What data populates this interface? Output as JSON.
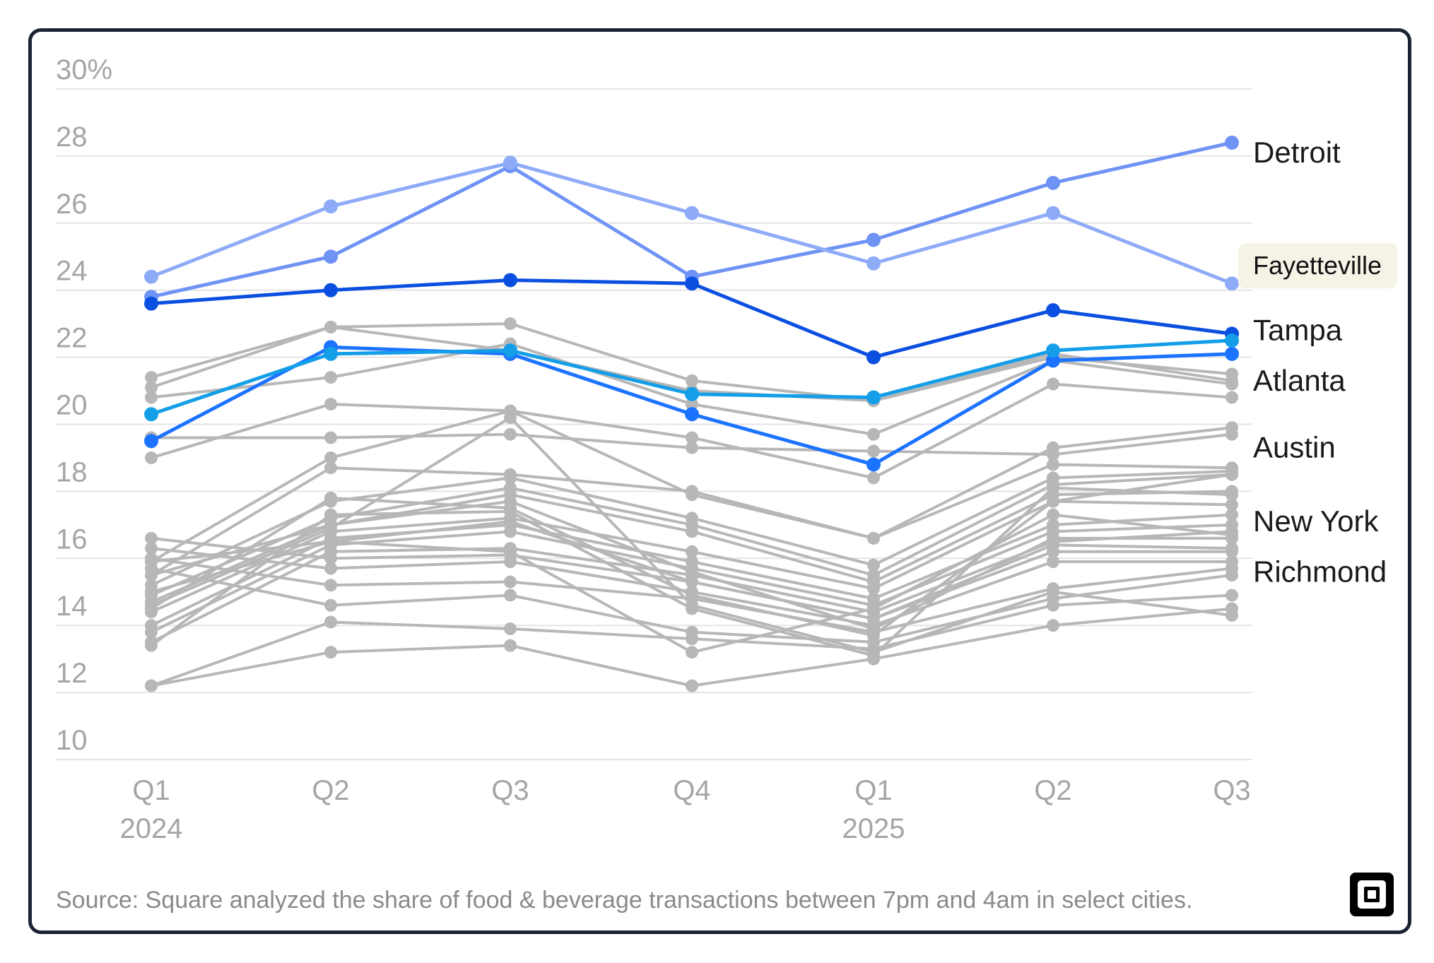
{
  "chart_data": {
    "type": "line",
    "x": [
      "Q1",
      "Q2",
      "Q3",
      "Q4",
      "Q1",
      "Q2",
      "Q3"
    ],
    "x_year_labels": [
      "2024",
      "",
      "",
      "",
      "2025",
      "",
      ""
    ],
    "y_ticks": [
      "30%",
      "28",
      "26",
      "24",
      "22",
      "20",
      "18",
      "16",
      "14",
      "12",
      "10"
    ],
    "ylim": [
      10,
      30
    ],
    "grid": true,
    "colors": {
      "background_series": "#b7b7b7",
      "detroit": "#6f93f5",
      "fayetteville": "#8eabf8",
      "tampa": "#0b4fe0",
      "atlanta": "#1c73ff",
      "austin": "#159ee8",
      "gridline": "#e4e4e4",
      "tick": "#a5a5a5"
    },
    "highlighted_series": [
      {
        "name": "Detroit",
        "values": [
          23.8,
          25.0,
          27.7,
          24.4,
          25.5,
          27.2,
          28.4
        ],
        "color_key": "detroit"
      },
      {
        "name": "Fayetteville",
        "values": [
          24.4,
          26.5,
          27.8,
          26.3,
          24.8,
          26.3,
          24.2
        ],
        "color_key": "fayetteville"
      },
      {
        "name": "Tampa",
        "values": [
          23.6,
          24.0,
          24.3,
          24.2,
          22.0,
          23.4,
          22.7
        ],
        "color_key": "tampa"
      },
      {
        "name": "Atlanta",
        "values": [
          19.5,
          22.3,
          22.1,
          20.3,
          18.8,
          21.9,
          22.1
        ],
        "color_key": "atlanta"
      },
      {
        "name": "Austin",
        "values": [
          20.3,
          22.1,
          22.2,
          20.9,
          20.8,
          22.2,
          22.5
        ],
        "color_key": "austin"
      }
    ],
    "labels": [
      {
        "text": "Detroit",
        "value": 28.1
      },
      {
        "text": "Tampa",
        "value": 22.8
      },
      {
        "text": "Atlanta",
        "value": 21.3
      },
      {
        "text": "Austin",
        "value": 19.3
      },
      {
        "text": "New York",
        "value": 17.1
      },
      {
        "text": "Richmond",
        "value": 15.6
      }
    ],
    "tooltip": {
      "text": "Fayetteville",
      "series": "Fayetteville"
    },
    "background_series": [
      [
        21.4,
        22.9,
        23.0,
        21.3,
        20.7,
        22.0,
        21.5
      ],
      [
        21.1,
        22.9,
        22.2,
        21.0,
        20.7,
        22.1,
        21.3
      ],
      [
        20.8,
        21.4,
        22.4,
        20.6,
        19.7,
        21.9,
        21.2
      ],
      [
        19.0,
        20.6,
        20.4,
        19.6,
        18.4,
        21.2,
        20.8
      ],
      [
        19.6,
        19.6,
        19.7,
        19.3,
        19.2,
        19.1,
        19.7
      ],
      [
        15.9,
        19.0,
        20.4,
        17.9,
        16.6,
        19.3,
        19.9
      ],
      [
        15.5,
        18.7,
        18.5,
        18.0,
        16.6,
        18.8,
        18.7
      ],
      [
        15.2,
        17.7,
        18.4,
        17.2,
        15.8,
        18.4,
        18.6
      ],
      [
        14.9,
        17.2,
        18.1,
        17.0,
        15.5,
        18.2,
        18.5
      ],
      [
        14.7,
        17.0,
        17.9,
        16.8,
        15.3,
        17.9,
        18.0
      ],
      [
        14.4,
        16.8,
        17.2,
        16.2,
        15.1,
        17.7,
        17.6
      ],
      [
        14.0,
        16.6,
        17.0,
        15.9,
        14.8,
        17.0,
        17.3
      ],
      [
        13.8,
        16.4,
        16.8,
        15.7,
        14.6,
        16.8,
        17.0
      ],
      [
        13.5,
        16.2,
        16.3,
        15.5,
        14.4,
        16.5,
        16.8
      ],
      [
        16.6,
        16.0,
        16.1,
        15.3,
        14.2,
        16.2,
        16.2
      ],
      [
        16.3,
        15.7,
        15.9,
        15.0,
        14.0,
        15.9,
        15.9
      ],
      [
        16.0,
        15.2,
        15.3,
        14.8,
        13.8,
        15.1,
        15.7
      ],
      [
        15.7,
        14.6,
        14.9,
        13.8,
        13.5,
        14.8,
        15.5
      ],
      [
        12.2,
        14.1,
        13.9,
        13.6,
        13.3,
        14.6,
        14.9
      ],
      [
        12.2,
        13.2,
        13.4,
        12.2,
        13.0,
        14.0,
        14.5
      ],
      [
        14.6,
        16.9,
        20.2,
        14.6,
        13.2,
        15.0,
        14.3
      ],
      [
        15.5,
        17.0,
        17.7,
        15.6,
        13.9,
        16.6,
        16.6
      ],
      [
        15.0,
        16.5,
        17.1,
        15.3,
        14.2,
        16.4,
        16.3
      ],
      [
        14.5,
        17.8,
        17.5,
        14.9,
        13.7,
        17.7,
        18.5
      ],
      [
        13.4,
        17.3,
        17.4,
        14.5,
        13.1,
        18.1,
        17.9
      ],
      [
        15.9,
        16.5,
        16.2,
        13.2,
        14.5,
        17.3,
        16.7
      ]
    ]
  },
  "source": "Source: Square analyzed the share of food & beverage transactions between 7pm and 4am in select cities.",
  "logo": {
    "name": "square-logo-icon"
  }
}
